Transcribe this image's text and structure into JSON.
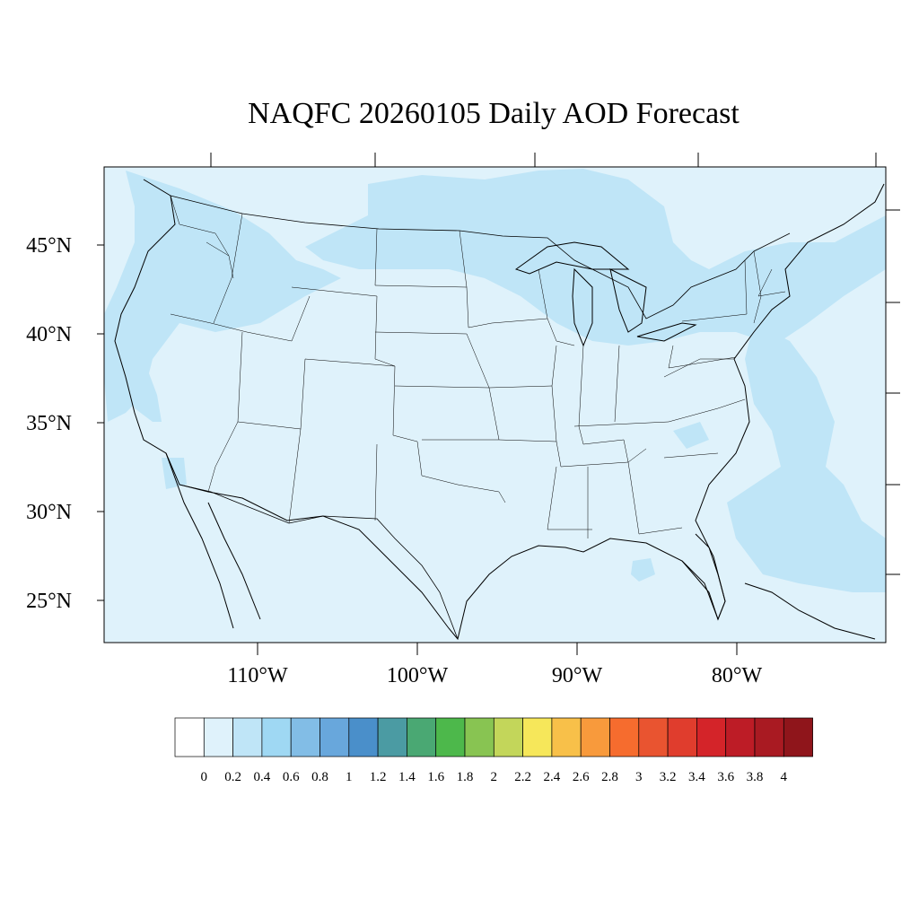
{
  "title": "NAQFC 20260105 Daily AOD Forecast",
  "map": {
    "projection": "Lambert conformal, CONUS",
    "lat_ticks": [
      {
        "value": 45,
        "label": "45°N"
      },
      {
        "value": 40,
        "label": "40°N"
      },
      {
        "value": 35,
        "label": "35°N"
      },
      {
        "value": 30,
        "label": "30°N"
      },
      {
        "value": 25,
        "label": "25°N"
      }
    ],
    "lon_ticks": [
      {
        "value": -110,
        "label": "110°W"
      },
      {
        "value": -100,
        "label": "100°W"
      },
      {
        "value": -90,
        "label": "90°W"
      },
      {
        "value": -80,
        "label": "80°W"
      }
    ],
    "field": "Aerosol Optical Depth",
    "background_level": "0.2-0.4",
    "elevated_regions": [
      "Pacific Northwest and northern Great Basin",
      "California Central Valley",
      "Northern Plains and Upper Midwest",
      "Great Lakes and New England",
      "Western Atlantic offshore",
      "Northeastern Gulf of Mexico"
    ],
    "colors": {
      "land_ocean_base": "#dff2fb",
      "elevated": "#bfe5f7",
      "coastline": "#000000"
    }
  },
  "colorbar": {
    "labels": [
      "0",
      "0.2",
      "0.4",
      "0.6",
      "0.8",
      "1",
      "1.2",
      "1.4",
      "1.6",
      "1.8",
      "2",
      "2.2",
      "2.4",
      "2.6",
      "2.8",
      "3",
      "3.2",
      "3.4",
      "3.6",
      "3.8",
      "4"
    ],
    "colors": [
      "#ffffff",
      "#dff2fb",
      "#bfe5f7",
      "#9fd8f3",
      "#82bde6",
      "#68a7dc",
      "#4a8fca",
      "#4b9ba3",
      "#4aa873",
      "#4db84b",
      "#88c452",
      "#c3d65a",
      "#f6e75a",
      "#f8c049",
      "#f89a3c",
      "#f66c2e",
      "#e95430",
      "#e03d2d",
      "#d42429",
      "#bd1c26",
      "#a91a22",
      "#8f151b"
    ]
  }
}
